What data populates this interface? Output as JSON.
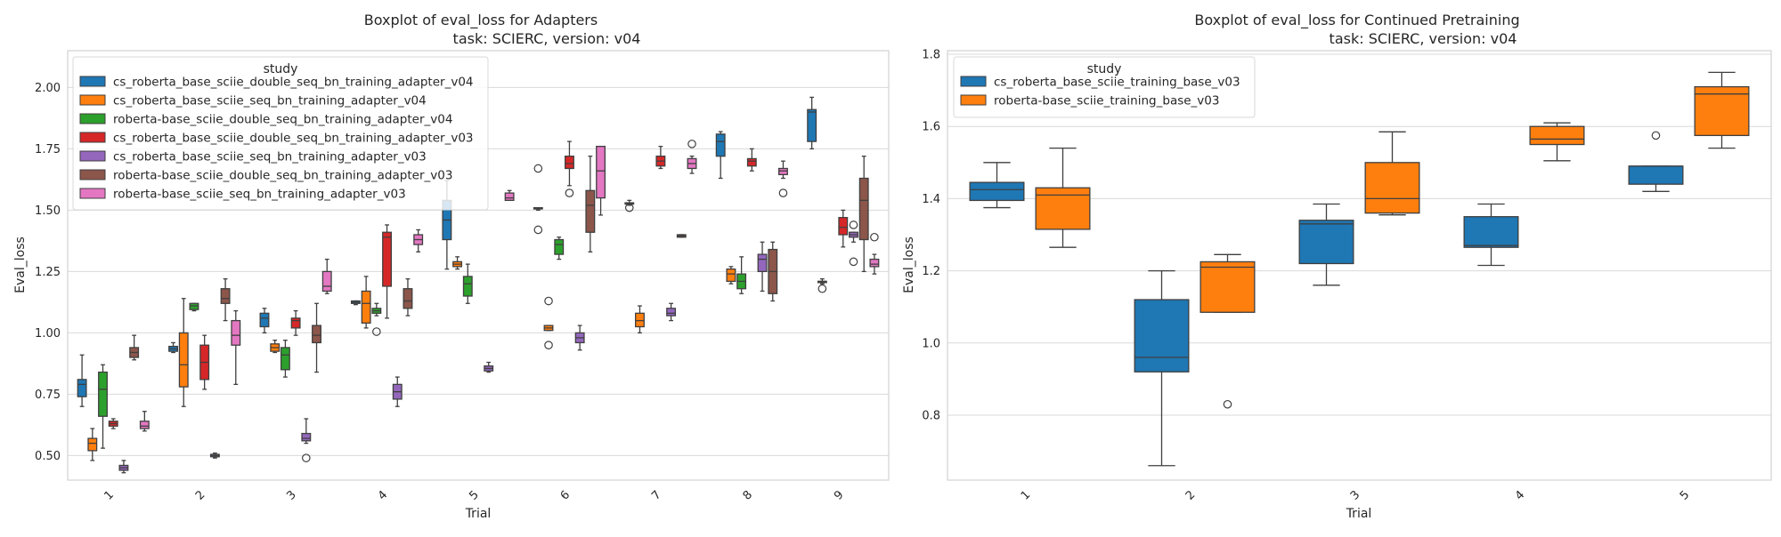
{
  "chart_data": [
    {
      "type": "box",
      "title": "Boxplot of eval_loss for Adapters",
      "subtitle": "task: SCIERC, version: v04",
      "xlabel": "Trial",
      "ylabel": "Eval_loss",
      "categories": [
        "1",
        "2",
        "3",
        "4",
        "5",
        "6",
        "7",
        "8",
        "9"
      ],
      "ylim": [
        0.4,
        2.15
      ],
      "yticks": [
        "0.50",
        "0.75",
        "1.00",
        "1.25",
        "1.50",
        "1.75",
        "2.00"
      ],
      "grid": true,
      "legend": {
        "title": "study",
        "placement": "top-left"
      },
      "series": [
        {
          "name": "cs_roberta_base_sciie_double_seq_bn_training_adapter_v04",
          "color": "#1f77b4",
          "boxes": [
            {
              "x": "1",
              "min": 0.7,
              "q1": 0.74,
              "median": 0.79,
              "q3": 0.81,
              "max": 0.91,
              "outliers": []
            },
            {
              "x": "2",
              "min": 0.92,
              "q1": 0.925,
              "median": 0.935,
              "q3": 0.945,
              "max": 0.96,
              "outliers": []
            },
            {
              "x": "3",
              "min": 1.0,
              "q1": 1.025,
              "median": 1.06,
              "q3": 1.08,
              "max": 1.1,
              "outliers": []
            },
            {
              "x": "4",
              "min": 1.115,
              "q1": 1.12,
              "median": 1.125,
              "q3": 1.13,
              "max": 1.13,
              "outliers": []
            },
            {
              "x": "5",
              "min": 1.26,
              "q1": 1.38,
              "median": 1.46,
              "q3": 1.54,
              "max": 1.62,
              "outliers": []
            },
            {
              "x": "6",
              "min": 1.5,
              "q1": 1.505,
              "median": 1.51,
              "q3": 1.51,
              "max": 1.51,
              "outliers": [
                1.42,
                1.67
              ]
            },
            {
              "x": "7",
              "min": 1.52,
              "q1": 1.525,
              "median": 1.53,
              "q3": 1.53,
              "max": 1.54,
              "outliers": [
                1.51
              ]
            },
            {
              "x": "8",
              "min": 1.63,
              "q1": 1.72,
              "median": 1.78,
              "q3": 1.81,
              "max": 1.82,
              "outliers": []
            },
            {
              "x": "9",
              "min": 1.75,
              "q1": 1.78,
              "median": 1.9,
              "q3": 1.91,
              "max": 1.96,
              "outliers": []
            }
          ]
        },
        {
          "name": "cs_roberta_base_sciie_seq_bn_training_adapter_v04",
          "color": "#ff7f0e",
          "boxes": [
            {
              "x": "1",
              "min": 0.48,
              "q1": 0.52,
              "median": 0.55,
              "q3": 0.57,
              "max": 0.61,
              "outliers": []
            },
            {
              "x": "2",
              "min": 0.7,
              "q1": 0.78,
              "median": 0.87,
              "q3": 1.0,
              "max": 1.14,
              "outliers": []
            },
            {
              "x": "3",
              "min": 0.92,
              "q1": 0.925,
              "median": 0.94,
              "q3": 0.955,
              "max": 0.97,
              "outliers": []
            },
            {
              "x": "4",
              "min": 1.02,
              "q1": 1.04,
              "median": 1.12,
              "q3": 1.17,
              "max": 1.23,
              "outliers": []
            },
            {
              "x": "5",
              "min": 1.26,
              "q1": 1.27,
              "median": 1.28,
              "q3": 1.29,
              "max": 1.31,
              "outliers": []
            },
            {
              "x": "6",
              "min": 1.01,
              "q1": 1.01,
              "median": 1.02,
              "q3": 1.03,
              "max": 1.03,
              "outliers": [
                0.95,
                1.13
              ]
            },
            {
              "x": "7",
              "min": 1.0,
              "q1": 1.025,
              "median": 1.05,
              "q3": 1.08,
              "max": 1.11,
              "outliers": []
            },
            {
              "x": "8",
              "min": 1.2,
              "q1": 1.21,
              "median": 1.24,
              "q3": 1.26,
              "max": 1.27,
              "outliers": []
            },
            {
              "x": "9",
              "min": 1.2,
              "q1": 1.205,
              "median": 1.21,
              "q3": 1.21,
              "max": 1.22,
              "outliers": [
                1.18
              ]
            }
          ]
        },
        {
          "name": "roberta-base_sciie_double_seq_bn_training_adapter_v04",
          "color": "#2ca02c",
          "boxes": [
            {
              "x": "1",
              "min": 0.53,
              "q1": 0.66,
              "median": 0.77,
              "q3": 0.84,
              "max": 0.87,
              "outliers": []
            },
            {
              "x": "2",
              "min": 1.09,
              "q1": 1.095,
              "median": 1.11,
              "q3": 1.12,
              "max": 1.12,
              "outliers": []
            },
            {
              "x": "3",
              "min": 0.82,
              "q1": 0.85,
              "median": 0.91,
              "q3": 0.94,
              "max": 0.97,
              "outliers": []
            },
            {
              "x": "4",
              "min": 1.07,
              "q1": 1.08,
              "median": 1.09,
              "q3": 1.1,
              "max": 1.12,
              "outliers": [
                1.005
              ]
            },
            {
              "x": "5",
              "min": 1.12,
              "q1": 1.15,
              "median": 1.2,
              "q3": 1.23,
              "max": 1.28,
              "outliers": []
            },
            {
              "x": "6",
              "min": 1.3,
              "q1": 1.32,
              "median": 1.36,
              "q3": 1.38,
              "max": 1.39,
              "outliers": []
            },
            {
              "x": "8",
              "min": 1.16,
              "q1": 1.18,
              "median": 1.21,
              "q3": 1.24,
              "max": 1.31,
              "outliers": []
            }
          ]
        },
        {
          "name": "cs_roberta_base_sciie_double_seq_bn_training_adapter_v03",
          "color": "#d62728",
          "boxes": [
            {
              "x": "1",
              "min": 0.61,
              "q1": 0.62,
              "median": 0.63,
              "q3": 0.64,
              "max": 0.65,
              "outliers": []
            },
            {
              "x": "2",
              "min": 0.77,
              "q1": 0.81,
              "median": 0.88,
              "q3": 0.95,
              "max": 0.99,
              "outliers": []
            },
            {
              "x": "3",
              "min": 0.99,
              "q1": 1.02,
              "median": 1.05,
              "q3": 1.06,
              "max": 1.09,
              "outliers": []
            },
            {
              "x": "4",
              "min": 1.06,
              "q1": 1.19,
              "median": 1.39,
              "q3": 1.41,
              "max": 1.44,
              "outliers": []
            },
            {
              "x": "6",
              "min": 1.6,
              "q1": 1.67,
              "median": 1.69,
              "q3": 1.72,
              "max": 1.78,
              "outliers": [
                1.57
              ]
            },
            {
              "x": "7",
              "min": 1.67,
              "q1": 1.68,
              "median": 1.7,
              "q3": 1.72,
              "max": 1.76,
              "outliers": []
            },
            {
              "x": "8",
              "min": 1.66,
              "q1": 1.68,
              "median": 1.7,
              "q3": 1.71,
              "max": 1.75,
              "outliers": []
            },
            {
              "x": "9",
              "min": 1.35,
              "q1": 1.4,
              "median": 1.43,
              "q3": 1.47,
              "max": 1.5,
              "outliers": []
            }
          ]
        },
        {
          "name": "cs_roberta_base_sciie_seq_bn_training_adapter_v03",
          "color": "#9467bd",
          "boxes": [
            {
              "x": "1",
              "min": 0.43,
              "q1": 0.44,
              "median": 0.45,
              "q3": 0.46,
              "max": 0.48,
              "outliers": []
            },
            {
              "x": "2",
              "min": 0.49,
              "q1": 0.495,
              "median": 0.5,
              "q3": 0.505,
              "max": 0.51,
              "outliers": []
            },
            {
              "x": "3",
              "min": 0.55,
              "q1": 0.56,
              "median": 0.57,
              "q3": 0.59,
              "max": 0.65,
              "outliers": [
                0.49
              ]
            },
            {
              "x": "4",
              "min": 0.7,
              "q1": 0.73,
              "median": 0.76,
              "q3": 0.79,
              "max": 0.82,
              "outliers": []
            },
            {
              "x": "5",
              "min": 0.84,
              "q1": 0.845,
              "median": 0.855,
              "q3": 0.865,
              "max": 0.88,
              "outliers": []
            },
            {
              "x": "6",
              "min": 0.93,
              "q1": 0.96,
              "median": 0.98,
              "q3": 1.0,
              "max": 1.03,
              "outliers": []
            },
            {
              "x": "7",
              "min": 1.05,
              "q1": 1.07,
              "median": 1.08,
              "q3": 1.1,
              "max": 1.12,
              "outliers": []
            },
            {
              "x": "8",
              "min": 1.17,
              "q1": 1.25,
              "median": 1.3,
              "q3": 1.32,
              "max": 1.37,
              "outliers": []
            },
            {
              "x": "9",
              "min": 1.37,
              "q1": 1.39,
              "median": 1.4,
              "q3": 1.41,
              "max": 1.41,
              "outliers": [
                1.29,
                1.44
              ]
            }
          ]
        },
        {
          "name": "roberta-base_sciie_double_seq_bn_training_adapter_v03",
          "color": "#8c564b",
          "boxes": [
            {
              "x": "1",
              "min": 0.89,
              "q1": 0.9,
              "median": 0.92,
              "q3": 0.94,
              "max": 0.99,
              "outliers": []
            },
            {
              "x": "2",
              "min": 1.05,
              "q1": 1.12,
              "median": 1.14,
              "q3": 1.18,
              "max": 1.22,
              "outliers": []
            },
            {
              "x": "3",
              "min": 0.84,
              "q1": 0.96,
              "median": 0.99,
              "q3": 1.03,
              "max": 1.12,
              "outliers": []
            },
            {
              "x": "4",
              "min": 1.07,
              "q1": 1.1,
              "median": 1.13,
              "q3": 1.18,
              "max": 1.22,
              "outliers": []
            },
            {
              "x": "6",
              "min": 1.33,
              "q1": 1.41,
              "median": 1.52,
              "q3": 1.58,
              "max": 1.72,
              "outliers": []
            },
            {
              "x": "7",
              "min": 1.39,
              "q1": 1.39,
              "median": 1.395,
              "q3": 1.4,
              "max": 1.4,
              "outliers": []
            },
            {
              "x": "8",
              "min": 1.13,
              "q1": 1.16,
              "median": 1.25,
              "q3": 1.34,
              "max": 1.37,
              "outliers": []
            },
            {
              "x": "9",
              "min": 1.25,
              "q1": 1.38,
              "median": 1.54,
              "q3": 1.63,
              "max": 1.72,
              "outliers": []
            }
          ]
        },
        {
          "name": "roberta-base_sciie_seq_bn_training_adapter_v03",
          "color": "#e377c2",
          "boxes": [
            {
              "x": "1",
              "min": 0.6,
              "q1": 0.61,
              "median": 0.62,
              "q3": 0.64,
              "max": 0.68,
              "outliers": []
            },
            {
              "x": "2",
              "min": 0.79,
              "q1": 0.95,
              "median": 0.99,
              "q3": 1.05,
              "max": 1.09,
              "outliers": []
            },
            {
              "x": "3",
              "min": 1.16,
              "q1": 1.17,
              "median": 1.19,
              "q3": 1.25,
              "max": 1.3,
              "outliers": []
            },
            {
              "x": "4",
              "min": 1.33,
              "q1": 1.36,
              "median": 1.38,
              "q3": 1.4,
              "max": 1.42,
              "outliers": []
            },
            {
              "x": "5",
              "min": 1.54,
              "q1": 1.54,
              "median": 1.55,
              "q3": 1.57,
              "max": 1.58,
              "outliers": []
            },
            {
              "x": "6",
              "min": 1.48,
              "q1": 1.55,
              "median": 1.66,
              "q3": 1.76,
              "max": 1.76,
              "outliers": []
            },
            {
              "x": "7",
              "min": 1.65,
              "q1": 1.67,
              "median": 1.69,
              "q3": 1.71,
              "max": 1.72,
              "outliers": [
                1.77
              ]
            },
            {
              "x": "8",
              "min": 1.63,
              "q1": 1.645,
              "median": 1.66,
              "q3": 1.67,
              "max": 1.7,
              "outliers": [
                1.57
              ]
            },
            {
              "x": "9",
              "min": 1.24,
              "q1": 1.27,
              "median": 1.28,
              "q3": 1.3,
              "max": 1.32,
              "outliers": [
                1.39
              ]
            }
          ]
        }
      ]
    },
    {
      "type": "box",
      "title": "Boxplot of eval_loss for Continued Pretraining",
      "subtitle": "task: SCIERC, version: v04",
      "xlabel": "Trial",
      "ylabel": "Eval_loss",
      "categories": [
        "1",
        "2",
        "3",
        "4",
        "5"
      ],
      "ylim": [
        0.62,
        1.81
      ],
      "yticks": [
        "0.8",
        "1.0",
        "1.2",
        "1.4",
        "1.6",
        "1.8"
      ],
      "grid": true,
      "legend": {
        "title": "study",
        "placement": "top-left"
      },
      "series": [
        {
          "name": "cs_roberta_base_sciie_training_base_v03",
          "color": "#1f77b4",
          "boxes": [
            {
              "x": "1",
              "min": 1.375,
              "q1": 1.395,
              "median": 1.425,
              "q3": 1.445,
              "max": 1.5,
              "outliers": []
            },
            {
              "x": "2",
              "min": 0.66,
              "q1": 0.92,
              "median": 0.96,
              "q3": 1.12,
              "max": 1.2,
              "outliers": []
            },
            {
              "x": "3",
              "min": 1.16,
              "q1": 1.22,
              "median": 1.33,
              "q3": 1.34,
              "max": 1.385,
              "outliers": []
            },
            {
              "x": "4",
              "min": 1.215,
              "q1": 1.265,
              "median": 1.27,
              "q3": 1.35,
              "max": 1.385,
              "outliers": []
            },
            {
              "x": "5",
              "min": 1.42,
              "q1": 1.44,
              "median": 1.49,
              "q3": 1.49,
              "max": 1.49,
              "outliers": [
                1.575
              ]
            }
          ]
        },
        {
          "name": "roberta-base_sciie_training_base_v03",
          "color": "#ff7f0e",
          "boxes": [
            {
              "x": "1",
              "min": 1.265,
              "q1": 1.315,
              "median": 1.41,
              "q3": 1.43,
              "max": 1.54,
              "outliers": []
            },
            {
              "x": "2",
              "min": 1.085,
              "q1": 1.085,
              "median": 1.21,
              "q3": 1.225,
              "max": 1.245,
              "outliers": [
                0.83
              ]
            },
            {
              "x": "3",
              "min": 1.355,
              "q1": 1.36,
              "median": 1.4,
              "q3": 1.5,
              "max": 1.585,
              "outliers": []
            },
            {
              "x": "4",
              "min": 1.505,
              "q1": 1.55,
              "median": 1.565,
              "q3": 1.6,
              "max": 1.61,
              "outliers": []
            },
            {
              "x": "5",
              "min": 1.54,
              "q1": 1.575,
              "median": 1.69,
              "q3": 1.71,
              "max": 1.75,
              "outliers": []
            }
          ]
        }
      ]
    }
  ]
}
